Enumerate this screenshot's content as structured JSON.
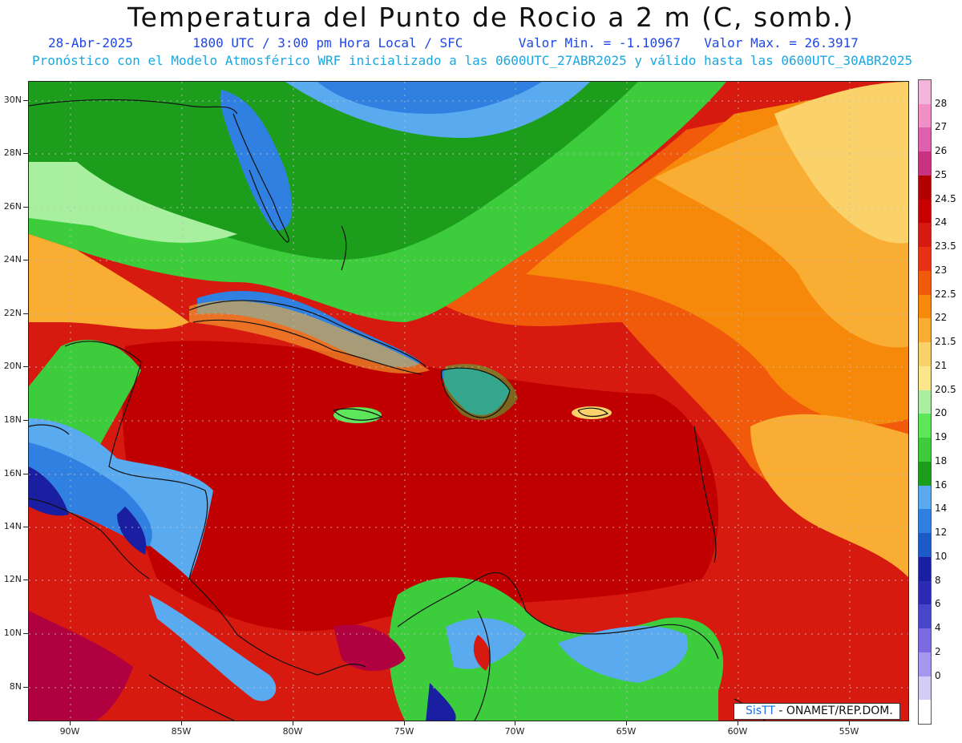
{
  "header": {
    "title": "Temperatura del Punto de Rocio a 2 m (C, somb.)",
    "date": "28-Abr-2025",
    "time_info": "1800 UTC / 3:00 pm Hora Local / SFC",
    "min_value": "Valor Min. = -1.10967",
    "max_value": "Valor Max. = 26.3917",
    "model_info": "Pronóstico con el Modelo Atmosférico WRF inicializado a las 0600UTC_27ABR2025 y válido hasta las  0600UTC_30ABR2025"
  },
  "axes": {
    "lat_labels": [
      "30N",
      "28N",
      "26N",
      "24N",
      "22N",
      "20N",
      "18N",
      "16N",
      "14N",
      "12N",
      "10N",
      "8N"
    ],
    "lon_labels": [
      "90W",
      "85W",
      "80W",
      "75W",
      "70W",
      "65W",
      "60W",
      "55W"
    ]
  },
  "colorbar": {
    "labels": [
      "28",
      "27",
      "26",
      "25",
      "24.5",
      "24",
      "23.5",
      "23",
      "22.5",
      "22",
      "21.5",
      "21",
      "20.5",
      "20",
      "19",
      "18",
      "16",
      "14",
      "12",
      "10",
      "8",
      "6",
      "4",
      "2",
      "0"
    ],
    "colors": [
      "#f4b6d8",
      "#f08ec6",
      "#e060b0",
      "#c8327f",
      "#b00000",
      "#c80000",
      "#d61a10",
      "#e83214",
      "#f05a0a",
      "#f7890a",
      "#f9ad32",
      "#fbd26a",
      "#fbe68c",
      "#a8f0a0",
      "#5ee65a",
      "#3ccc3c",
      "#1c9e1c",
      "#5aaaf0",
      "#2f80e0",
      "#1c5ac8",
      "#1a1ea0",
      "#2a2ab4",
      "#4646c8",
      "#7a6ce0",
      "#a796f0",
      "#d2ccf6",
      "#ffffff"
    ]
  },
  "credit": {
    "brand": "SisTT",
    "org": " - ONAMET/REP.DOM."
  }
}
